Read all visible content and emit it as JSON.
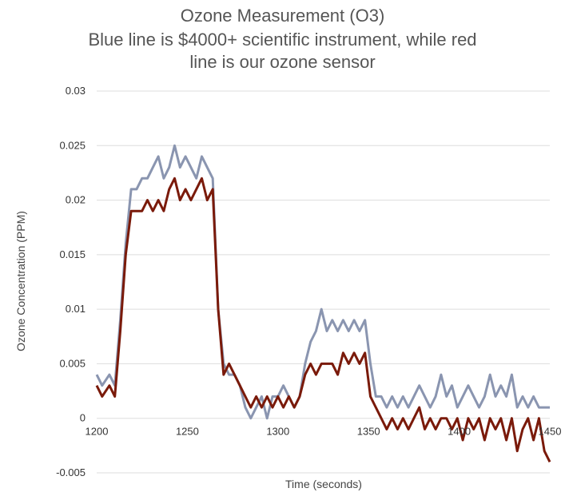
{
  "chart_data": {
    "type": "line",
    "title_lines": [
      "Ozone Measurement (O3)",
      "Blue line is $4000+ scientific instrument, while red",
      "line is our  ozone sensor"
    ],
    "xlabel": "Time (seconds)",
    "ylabel": "Ozone Concentration (PPM)",
    "xlim": [
      1200,
      1450
    ],
    "ylim": [
      -0.005,
      0.03
    ],
    "x_ticks": [
      "1200",
      "1250",
      "1300",
      "1350",
      "1400",
      "1450"
    ],
    "y_ticks": [
      "0.03",
      "0.025",
      "0.02",
      "0.015",
      "0.01",
      "0.005",
      "0",
      "-0.005"
    ],
    "grid": true,
    "legend": "none",
    "series": [
      {
        "color": "#8a95b0",
        "x": [
          1200,
          1203,
          1207,
          1210,
          1213,
          1216,
          1219,
          1222,
          1225,
          1228,
          1231,
          1234,
          1237,
          1240,
          1243,
          1246,
          1249,
          1252,
          1255,
          1258,
          1261,
          1264,
          1267,
          1270,
          1273,
          1276,
          1279,
          1282,
          1285,
          1288,
          1291,
          1294,
          1297,
          1300,
          1303,
          1306,
          1309,
          1312,
          1315,
          1318,
          1321,
          1324,
          1327,
          1330,
          1333,
          1336,
          1339,
          1342,
          1345,
          1348,
          1351,
          1354,
          1357,
          1360,
          1363,
          1366,
          1369,
          1372,
          1375,
          1378,
          1381,
          1384,
          1387,
          1390,
          1393,
          1396,
          1399,
          1402,
          1405,
          1408,
          1411,
          1414,
          1417,
          1420,
          1423,
          1426,
          1429,
          1432,
          1435,
          1438,
          1441,
          1444,
          1447,
          1450
        ],
        "y": [
          0.004,
          0.003,
          0.004,
          0.003,
          0.009,
          0.016,
          0.021,
          0.021,
          0.022,
          0.022,
          0.023,
          0.024,
          0.022,
          0.023,
          0.025,
          0.023,
          0.024,
          0.023,
          0.022,
          0.024,
          0.023,
          0.022,
          0.01,
          0.005,
          0.004,
          0.004,
          0.003,
          0.001,
          0.0,
          0.001,
          0.002,
          0.0,
          0.002,
          0.002,
          0.003,
          0.002,
          0.001,
          0.002,
          0.005,
          0.007,
          0.008,
          0.01,
          0.008,
          0.009,
          0.008,
          0.009,
          0.008,
          0.009,
          0.008,
          0.009,
          0.005,
          0.002,
          0.002,
          0.001,
          0.002,
          0.001,
          0.002,
          0.001,
          0.002,
          0.003,
          0.002,
          0.001,
          0.002,
          0.004,
          0.002,
          0.003,
          0.001,
          0.002,
          0.003,
          0.002,
          0.001,
          0.002,
          0.004,
          0.002,
          0.003,
          0.002,
          0.004,
          0.001,
          0.002,
          0.001,
          0.002,
          0.001,
          0.001,
          0.001
        ]
      },
      {
        "color": "#7a1a0a",
        "x": [
          1200,
          1203,
          1207,
          1210,
          1213,
          1216,
          1219,
          1222,
          1225,
          1228,
          1231,
          1234,
          1237,
          1240,
          1243,
          1246,
          1249,
          1252,
          1255,
          1258,
          1261,
          1264,
          1267,
          1270,
          1273,
          1276,
          1279,
          1282,
          1285,
          1288,
          1291,
          1294,
          1297,
          1300,
          1303,
          1306,
          1309,
          1312,
          1315,
          1318,
          1321,
          1324,
          1327,
          1330,
          1333,
          1336,
          1339,
          1342,
          1345,
          1348,
          1351,
          1354,
          1357,
          1360,
          1363,
          1366,
          1369,
          1372,
          1375,
          1378,
          1381,
          1384,
          1387,
          1390,
          1393,
          1396,
          1399,
          1402,
          1405,
          1408,
          1411,
          1414,
          1417,
          1420,
          1423,
          1426,
          1429,
          1432,
          1435,
          1438,
          1441,
          1444,
          1447,
          1450
        ],
        "y": [
          0.003,
          0.002,
          0.003,
          0.002,
          0.008,
          0.015,
          0.019,
          0.019,
          0.019,
          0.02,
          0.019,
          0.02,
          0.019,
          0.021,
          0.022,
          0.02,
          0.021,
          0.02,
          0.021,
          0.022,
          0.02,
          0.021,
          0.01,
          0.004,
          0.005,
          0.004,
          0.003,
          0.002,
          0.001,
          0.002,
          0.001,
          0.002,
          0.001,
          0.002,
          0.001,
          0.002,
          0.001,
          0.002,
          0.004,
          0.005,
          0.004,
          0.005,
          0.005,
          0.005,
          0.004,
          0.006,
          0.005,
          0.006,
          0.005,
          0.006,
          0.002,
          0.001,
          0.0,
          -0.001,
          0.0,
          -0.001,
          0.0,
          -0.001,
          0.0,
          0.001,
          -0.001,
          0.0,
          -0.001,
          0.0,
          0.0,
          -0.001,
          0.0,
          -0.002,
          0.0,
          -0.001,
          0.0,
          -0.002,
          0.0,
          -0.001,
          0.0,
          -0.002,
          0.0,
          -0.003,
          -0.001,
          0.0,
          -0.002,
          0.0,
          -0.003,
          -0.004
        ]
      }
    ]
  }
}
